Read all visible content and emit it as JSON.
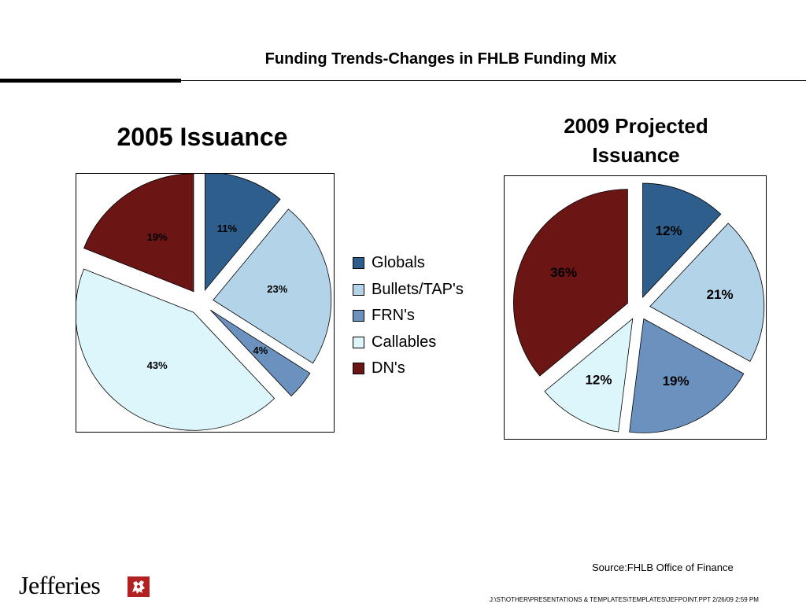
{
  "slide": {
    "title": "Funding Trends-Changes in FHLB Funding Mix",
    "source": "Source:FHLB Office of Finance",
    "footer_path": "J:\\ST\\OTHER\\PRESENTATIONS & TEMPLATES\\TEMPLATES\\JEFPOINT.PPT   2/26/09  2:59 PM",
    "logo_text": "Jefferies"
  },
  "legend": {
    "items": [
      {
        "label": "Globals",
        "color": "#2E5E8C"
      },
      {
        "label": "Bullets/TAP's",
        "color": "#B3D3E8"
      },
      {
        "label": "FRN's",
        "color": "#6B91BF"
      },
      {
        "label": "Callables",
        "color": "#DDF6FB"
      },
      {
        "label": "DN's",
        "color": "#6B1515"
      }
    ]
  },
  "chart_data": [
    {
      "type": "pie",
      "title": "2005 Issuance",
      "slices": [
        {
          "name": "Globals",
          "value": 11,
          "label": "11%",
          "color": "#2E5E8C"
        },
        {
          "name": "Bullets/TAP's",
          "value": 23,
          "label": "23%",
          "color": "#B3D3E8"
        },
        {
          "name": "FRN's",
          "value": 4,
          "label": "4%",
          "color": "#6B91BF"
        },
        {
          "name": "Callables",
          "value": 43,
          "label": "43%",
          "color": "#DDF6FB"
        },
        {
          "name": "DN's",
          "value": 19,
          "label": "19%",
          "color": "#6B1515"
        }
      ],
      "exploded": true,
      "legend": "right"
    },
    {
      "type": "pie",
      "title": "2009 Projected Issuance",
      "slices": [
        {
          "name": "Globals",
          "value": 12,
          "label": "12%",
          "color": "#2E5E8C"
        },
        {
          "name": "Bullets/TAP's",
          "value": 21,
          "label": "21%",
          "color": "#B3D3E8"
        },
        {
          "name": "FRN's",
          "value": 19,
          "label": "19%",
          "color": "#6B91BF"
        },
        {
          "name": "Callables",
          "value": 12,
          "label": "12%",
          "color": "#DDF6FB"
        },
        {
          "name": "DN's",
          "value": 36,
          "label": "36%",
          "color": "#6B1515"
        }
      ],
      "exploded": true,
      "legend": "none"
    }
  ]
}
